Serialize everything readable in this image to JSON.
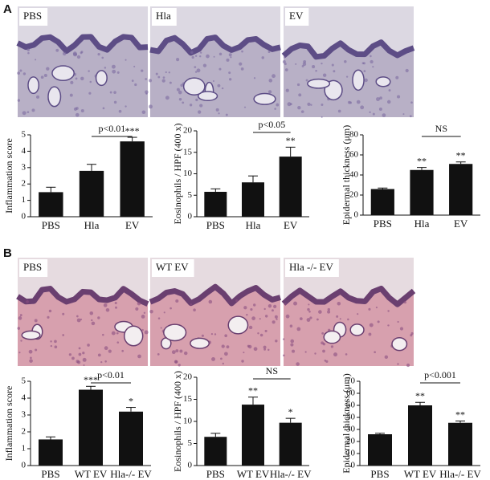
{
  "panel_labels": [
    "A",
    "B"
  ],
  "images": [
    [
      "PBS",
      "Hla",
      "EV"
    ],
    [
      "PBS",
      "WT EV",
      "Hla -/- EV"
    ]
  ],
  "chart_data": [
    {
      "type": "bar",
      "ylabel": "Inflammation score",
      "categories": [
        "PBS",
        "Hla",
        "EV"
      ],
      "values": [
        1.5,
        2.8,
        4.6
      ],
      "errors": [
        0.3,
        0.4,
        0.25
      ],
      "stars": [
        null,
        null,
        "***"
      ],
      "bracket": {
        "between": [
          1,
          2
        ],
        "label": "p<0.01"
      },
      "ylim": [
        0,
        5
      ],
      "yticks": [
        0,
        1,
        2,
        3,
        4,
        5
      ],
      "color": "#111111"
    },
    {
      "type": "bar",
      "ylabel": "Eosinophils / HPF (400 x)",
      "categories": [
        "PBS",
        "Hla",
        "EV"
      ],
      "values": [
        5.8,
        8.0,
        14.0
      ],
      "errors": [
        0.7,
        1.5,
        2.2
      ],
      "stars": [
        null,
        null,
        "**"
      ],
      "bracket": {
        "between": [
          1,
          2
        ],
        "label": "p<0.05"
      },
      "ylim": [
        0,
        20
      ],
      "yticks": [
        0,
        5,
        10,
        15,
        20
      ],
      "color": "#111111"
    },
    {
      "type": "bar",
      "ylabel": "Epidermal thickness (μm)",
      "categories": [
        "PBS",
        "Hla",
        "EV"
      ],
      "values": [
        26,
        45,
        51
      ],
      "errors": [
        1,
        2.5,
        2
      ],
      "stars": [
        null,
        "**",
        "**"
      ],
      "bracket": {
        "between": [
          1,
          2
        ],
        "label": "NS"
      },
      "ylim": [
        0,
        80
      ],
      "yticks": [
        0,
        20,
        40,
        60,
        80
      ],
      "color": "#111111"
    },
    {
      "type": "bar",
      "ylabel": "Inflammation score",
      "categories": [
        "PBS",
        "WT EV",
        "Hla-/- EV"
      ],
      "values": [
        1.55,
        4.5,
        3.2
      ],
      "errors": [
        0.15,
        0.2,
        0.25
      ],
      "stars": [
        null,
        "***",
        "*"
      ],
      "bracket": {
        "between": [
          1,
          2
        ],
        "label": "p<0.01"
      },
      "ylim": [
        0,
        5
      ],
      "yticks": [
        0,
        1,
        2,
        3,
        4,
        5
      ],
      "color": "#111111"
    },
    {
      "type": "bar",
      "ylabel": "Eosinophils / HPF (400 x)",
      "categories": [
        "PBS",
        "WT EV",
        "Hla-/- EV"
      ],
      "values": [
        6.5,
        13.8,
        9.7
      ],
      "errors": [
        0.8,
        1.7,
        1.0
      ],
      "stars": [
        null,
        "**",
        "*"
      ],
      "bracket": {
        "between": [
          1,
          2
        ],
        "label": "NS"
      },
      "ylim": [
        0,
        20
      ],
      "yticks": [
        0,
        5,
        10,
        15,
        20
      ],
      "color": "#111111"
    },
    {
      "type": "bar",
      "ylabel": "Epidermal thickness (μm)",
      "categories": [
        "PBS",
        "WT EV",
        "Hla-/- EV"
      ],
      "values": [
        26,
        50,
        35.5
      ],
      "errors": [
        0.8,
        2.5,
        1.5
      ],
      "stars": [
        null,
        "**",
        "**"
      ],
      "bracket": {
        "between": [
          1,
          2
        ],
        "label": "p<0.001"
      },
      "ylim": [
        0,
        70
      ],
      "yticks": [
        0,
        10,
        20,
        30,
        40,
        50,
        60,
        70
      ],
      "color": "#111111"
    }
  ]
}
